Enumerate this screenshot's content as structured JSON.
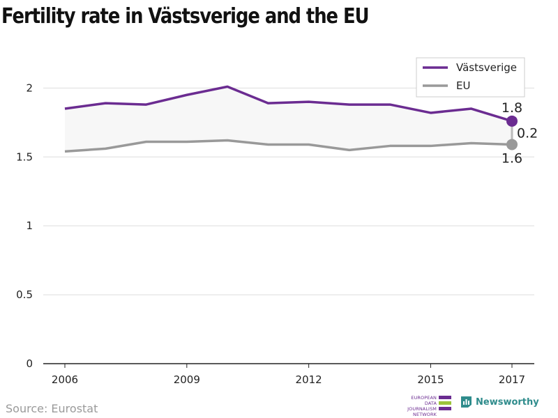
{
  "title": "Fertility rate in Västsverige and the EU",
  "source": "Source: Eurostat",
  "logos": {
    "ejn_lines": [
      "EUROPEAN",
      "DATA JOURNALISM",
      "NETWORK"
    ],
    "ejn_colors": [
      "#6b2c91",
      "#9cc43b",
      "#6b2c91"
    ],
    "newsworthy": "Newsworthy"
  },
  "colors": {
    "primary": "#6b2c91",
    "secondary": "#999999",
    "band": "#f7f7f7",
    "grid": "#dddddd"
  },
  "chart_data": {
    "type": "line",
    "x": [
      2006,
      2007,
      2008,
      2009,
      2010,
      2011,
      2012,
      2013,
      2014,
      2015,
      2016,
      2017
    ],
    "x_ticks": [
      "2006",
      "2009",
      "2012",
      "2015",
      "2017"
    ],
    "y_ticks": [
      "0",
      "0.5",
      "1",
      "1.5",
      "2"
    ],
    "ylim": [
      0,
      2.3
    ],
    "grid": true,
    "legend_position": "top-right",
    "series": [
      {
        "name": "Västsverige",
        "values": [
          1.85,
          1.89,
          1.88,
          1.95,
          2.01,
          1.89,
          1.9,
          1.88,
          1.88,
          1.82,
          1.85,
          1.76
        ]
      },
      {
        "name": "EU",
        "values": [
          1.54,
          1.56,
          1.61,
          1.61,
          1.62,
          1.59,
          1.59,
          1.55,
          1.58,
          1.58,
          1.6,
          1.59
        ]
      }
    ],
    "annotations": {
      "primary_last": "1.8",
      "secondary_last": "1.6",
      "difference": "0.2"
    }
  }
}
